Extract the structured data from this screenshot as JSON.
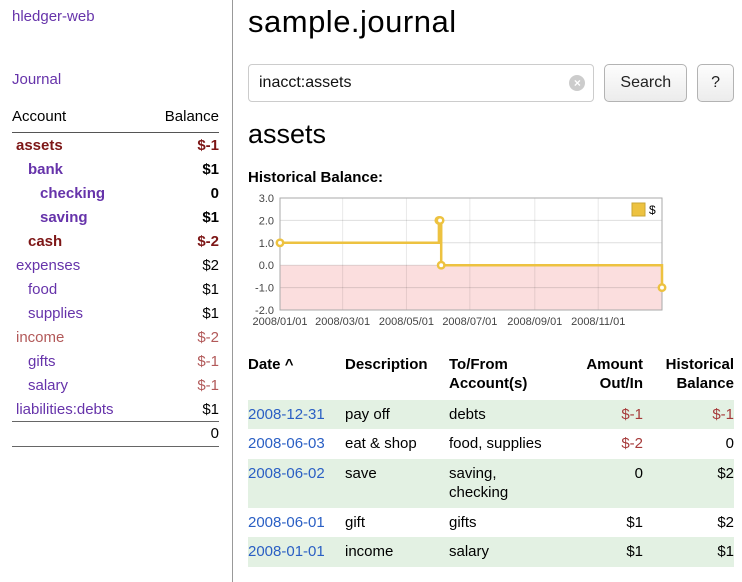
{
  "colors": {
    "link_purple": "#6633aa",
    "date_link_blue": "#2a5fc4",
    "negative_strong": "#7d1616",
    "negative_muted": "#b25959",
    "table_negative": "#a63a3a",
    "row_shade_green": "#e3f1e3",
    "chart_line_gold": "#edc240",
    "chart_negative_pink": "#fbdede"
  },
  "sidebar": {
    "app_title": "hledger-web",
    "journal_label": "Journal",
    "accounts": {
      "header_account": "Account",
      "header_balance": "Balance",
      "rows": [
        {
          "name": "assets",
          "balance": "$-1",
          "indent": 1,
          "bold": true,
          "name_tone": "neg",
          "balance_tone": "neg"
        },
        {
          "name": "bank",
          "balance": "$1",
          "indent": 2,
          "bold": true,
          "name_tone": "purple",
          "balance_tone": "normal"
        },
        {
          "name": "checking",
          "balance": "0",
          "indent": 3,
          "bold": true,
          "name_tone": "purple",
          "balance_tone": "normal"
        },
        {
          "name": "saving",
          "balance": "$1",
          "indent": 3,
          "bold": true,
          "name_tone": "purple",
          "balance_tone": "normal"
        },
        {
          "name": "cash",
          "balance": "$-2",
          "indent": 2,
          "bold": true,
          "name_tone": "neg",
          "balance_tone": "neg"
        },
        {
          "name": "expenses",
          "balance": "$2",
          "indent": 1,
          "bold": false,
          "name_tone": "purple",
          "balance_tone": "normal"
        },
        {
          "name": "food",
          "balance": "$1",
          "indent": 2,
          "bold": false,
          "name_tone": "purple",
          "balance_tone": "normal"
        },
        {
          "name": "supplies",
          "balance": "$1",
          "indent": 2,
          "bold": false,
          "name_tone": "purple",
          "balance_tone": "normal"
        },
        {
          "name": "income",
          "balance": "$-2",
          "indent": 1,
          "bold": false,
          "name_tone": "negmuted",
          "balance_tone": "negmuted"
        },
        {
          "name": "gifts",
          "balance": "$-1",
          "indent": 2,
          "bold": false,
          "name_tone": "purple",
          "balance_tone": "negmuted"
        },
        {
          "name": "salary",
          "balance": "$-1",
          "indent": 2,
          "bold": false,
          "name_tone": "purple",
          "balance_tone": "negmuted"
        },
        {
          "name": "liabilities:debts",
          "balance": "$1",
          "indent": 1,
          "bold": false,
          "name_tone": "purple",
          "balance_tone": "normal"
        }
      ],
      "total": "0"
    }
  },
  "main": {
    "page_title": "sample.journal",
    "search": {
      "value": "inacct:assets",
      "clear_icon": "×",
      "search_button": "Search",
      "help_button": "?"
    },
    "account_heading": "assets",
    "chart_title": "Historical Balance:"
  },
  "chart_data": {
    "type": "line",
    "line_style": "step",
    "title": "Historical Balance:",
    "series_label": "$",
    "legend_position": "top-right",
    "grid": true,
    "ylim": [
      -2,
      3
    ],
    "y_ticks": [
      3.0,
      2.0,
      1.0,
      0.0,
      -1.0,
      -2.0
    ],
    "x_ticks": [
      {
        "label": "2008/01/01",
        "pos": 0.0
      },
      {
        "label": "2008/03/01",
        "pos": 0.164
      },
      {
        "label": "2008/05/01",
        "pos": 0.331
      },
      {
        "label": "2008/07/01",
        "pos": 0.497
      },
      {
        "label": "2008/09/01",
        "pos": 0.667
      },
      {
        "label": "2008/11/01",
        "pos": 0.833
      }
    ],
    "points": [
      {
        "date": "2008-01-01",
        "x": 0.0,
        "y": 1
      },
      {
        "date": "2008-06-01",
        "x": 0.416,
        "y": 2
      },
      {
        "date": "2008-06-02",
        "x": 0.419,
        "y": 2
      },
      {
        "date": "2008-06-03",
        "x": 0.422,
        "y": 0
      },
      {
        "date": "2008-12-31",
        "x": 1.0,
        "y": -1
      }
    ]
  },
  "register": {
    "headers": {
      "date": "Date",
      "sort_icon": "^",
      "description": "Description",
      "accounts": "To/From Account(s)",
      "amount": "Amount Out/In",
      "balance": "Historical Balance"
    },
    "rows": [
      {
        "date": "2008-12-31",
        "description": "pay off",
        "accounts": "debts",
        "amount": "$-1",
        "amount_negative": true,
        "balance": "$-1",
        "balance_negative": true,
        "shaded": true
      },
      {
        "date": "2008-06-03",
        "description": "eat & shop",
        "accounts": "food, supplies",
        "amount": "$-2",
        "amount_negative": true,
        "balance": "0",
        "balance_negative": false,
        "shaded": false
      },
      {
        "date": "2008-06-02",
        "description": "save",
        "accounts": "saving, checking",
        "amount": "0",
        "amount_negative": false,
        "balance": "$2",
        "balance_negative": false,
        "shaded": true
      },
      {
        "date": "2008-06-01",
        "description": "gift",
        "accounts": "gifts",
        "amount": "$1",
        "amount_negative": false,
        "balance": "$2",
        "balance_negative": false,
        "shaded": false
      },
      {
        "date": "2008-01-01",
        "description": "income",
        "accounts": "salary",
        "amount": "$1",
        "amount_negative": false,
        "balance": "$1",
        "balance_negative": false,
        "shaded": true
      }
    ]
  }
}
